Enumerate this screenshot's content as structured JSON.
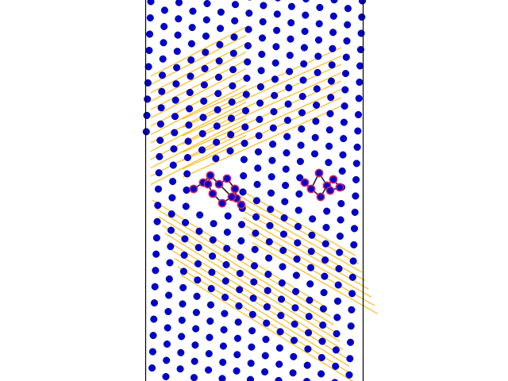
{
  "figure": {
    "description_text": "",
    "colors": {
      "background": "#ffffff",
      "frame": "#000000",
      "atom": "#0000cc",
      "atom_edge": "#00008a",
      "glide_line": "#ffb300",
      "defect_atom": "#cc2266",
      "defect_bond": "#222222"
    },
    "elements": {
      "atom_lattice": "blue-atom-lattice",
      "glide_planes": "orange-glide-lines",
      "defect_clusters": [
        "left-dislocation-core",
        "right-dislocation-core"
      ]
    }
  }
}
